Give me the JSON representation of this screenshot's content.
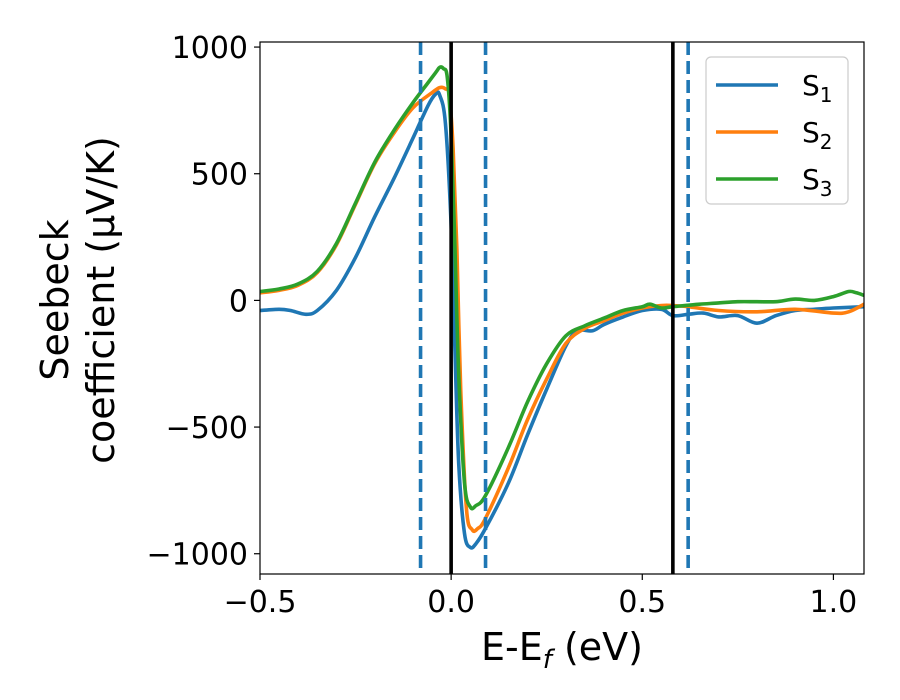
{
  "chart_data": {
    "type": "line",
    "xlabel": "E-E_f (eV)",
    "xlabel_parts": {
      "pre": "E-E",
      "sub": "f",
      "post": " (eV)"
    },
    "ylabel_lines": [
      "Seebeck",
      "coefficient  (μV/K)"
    ],
    "xlim": [
      -0.5,
      1.08
    ],
    "ylim": [
      -1080,
      1020
    ],
    "xticks": [
      -0.5,
      0.0,
      0.5,
      1.0
    ],
    "xtick_labels": [
      "−0.5",
      "0.0",
      "0.5",
      "1.0"
    ],
    "yticks": [
      -1000,
      -500,
      0,
      500,
      1000
    ],
    "ytick_labels": [
      "−1000",
      "−500",
      "0",
      "500",
      "1000"
    ],
    "legend_position": "top-right",
    "series": [
      {
        "name": "S_1",
        "label": {
          "base": "S",
          "sub": "1"
        },
        "color": "#1f77b4",
        "points": [
          [
            -0.5,
            -40
          ],
          [
            -0.45,
            -35
          ],
          [
            -0.42,
            -40
          ],
          [
            -0.38,
            -55
          ],
          [
            -0.35,
            -40
          ],
          [
            -0.3,
            40
          ],
          [
            -0.25,
            170
          ],
          [
            -0.2,
            330
          ],
          [
            -0.15,
            480
          ],
          [
            -0.1,
            640
          ],
          [
            -0.06,
            770
          ],
          [
            -0.04,
            815
          ],
          [
            -0.03,
            810
          ],
          [
            -0.015,
            700
          ],
          [
            0.0,
            300
          ],
          [
            0.01,
            -200
          ],
          [
            0.02,
            -650
          ],
          [
            0.035,
            -920
          ],
          [
            0.05,
            -975
          ],
          [
            0.065,
            -960
          ],
          [
            0.09,
            -900
          ],
          [
            0.15,
            -720
          ],
          [
            0.2,
            -530
          ],
          [
            0.25,
            -350
          ],
          [
            0.3,
            -180
          ],
          [
            0.33,
            -120
          ],
          [
            0.37,
            -120
          ],
          [
            0.4,
            -95
          ],
          [
            0.45,
            -65
          ],
          [
            0.5,
            -40
          ],
          [
            0.55,
            -35
          ],
          [
            0.58,
            -60
          ],
          [
            0.62,
            -55
          ],
          [
            0.66,
            -50
          ],
          [
            0.7,
            -65
          ],
          [
            0.75,
            -60
          ],
          [
            0.8,
            -90
          ],
          [
            0.85,
            -60
          ],
          [
            0.9,
            -40
          ],
          [
            0.95,
            -35
          ],
          [
            1.0,
            -30
          ],
          [
            1.08,
            -25
          ]
        ]
      },
      {
        "name": "S_2",
        "label": {
          "base": "S",
          "sub": "2"
        },
        "color": "#ff7f0e",
        "points": [
          [
            -0.5,
            30
          ],
          [
            -0.45,
            40
          ],
          [
            -0.4,
            60
          ],
          [
            -0.35,
            110
          ],
          [
            -0.3,
            220
          ],
          [
            -0.25,
            380
          ],
          [
            -0.2,
            540
          ],
          [
            -0.15,
            660
          ],
          [
            -0.1,
            760
          ],
          [
            -0.05,
            820
          ],
          [
            -0.03,
            840
          ],
          [
            -0.015,
            835
          ],
          [
            -0.005,
            810
          ],
          [
            0.005,
            600
          ],
          [
            0.015,
            200
          ],
          [
            0.025,
            -350
          ],
          [
            0.04,
            -820
          ],
          [
            0.055,
            -905
          ],
          [
            0.07,
            -900
          ],
          [
            0.09,
            -860
          ],
          [
            0.15,
            -660
          ],
          [
            0.2,
            -470
          ],
          [
            0.25,
            -310
          ],
          [
            0.3,
            -170
          ],
          [
            0.35,
            -110
          ],
          [
            0.4,
            -80
          ],
          [
            0.45,
            -50
          ],
          [
            0.5,
            -30
          ],
          [
            0.55,
            -20
          ],
          [
            0.58,
            -20
          ],
          [
            0.62,
            -25
          ],
          [
            0.7,
            -40
          ],
          [
            0.8,
            -45
          ],
          [
            0.9,
            -35
          ],
          [
            1.0,
            -50
          ],
          [
            1.04,
            -45
          ],
          [
            1.08,
            -15
          ]
        ]
      },
      {
        "name": "S_3",
        "label": {
          "base": "S",
          "sub": "3"
        },
        "color": "#2ca02c",
        "points": [
          [
            -0.5,
            35
          ],
          [
            -0.45,
            45
          ],
          [
            -0.4,
            65
          ],
          [
            -0.35,
            115
          ],
          [
            -0.3,
            225
          ],
          [
            -0.25,
            385
          ],
          [
            -0.2,
            545
          ],
          [
            -0.15,
            670
          ],
          [
            -0.1,
            780
          ],
          [
            -0.06,
            860
          ],
          [
            -0.04,
            900
          ],
          [
            -0.03,
            920
          ],
          [
            -0.02,
            915
          ],
          [
            -0.01,
            880
          ],
          [
            0.0,
            650
          ],
          [
            0.01,
            200
          ],
          [
            0.02,
            -300
          ],
          [
            0.035,
            -720
          ],
          [
            0.05,
            -815
          ],
          [
            0.065,
            -810
          ],
          [
            0.09,
            -770
          ],
          [
            0.15,
            -580
          ],
          [
            0.2,
            -400
          ],
          [
            0.25,
            -250
          ],
          [
            0.3,
            -140
          ],
          [
            0.35,
            -100
          ],
          [
            0.4,
            -70
          ],
          [
            0.45,
            -40
          ],
          [
            0.5,
            -25
          ],
          [
            0.52,
            -15
          ],
          [
            0.55,
            -30
          ],
          [
            0.58,
            -25
          ],
          [
            0.65,
            -15
          ],
          [
            0.7,
            -10
          ],
          [
            0.75,
            -5
          ],
          [
            0.8,
            -5
          ],
          [
            0.85,
            -5
          ],
          [
            0.9,
            5
          ],
          [
            0.95,
            0
          ],
          [
            1.0,
            15
          ],
          [
            1.04,
            35
          ],
          [
            1.06,
            30
          ],
          [
            1.08,
            20
          ]
        ]
      }
    ],
    "vlines": [
      {
        "x": 0.0,
        "style": "solid",
        "color": "#000000"
      },
      {
        "x": 0.58,
        "style": "solid",
        "color": "#000000"
      },
      {
        "x": -0.08,
        "style": "dashed",
        "color": "#1f77b4"
      },
      {
        "x": 0.09,
        "style": "dashed",
        "color": "#1f77b4"
      },
      {
        "x": 0.62,
        "style": "dashed",
        "color": "#1f77b4"
      }
    ]
  }
}
